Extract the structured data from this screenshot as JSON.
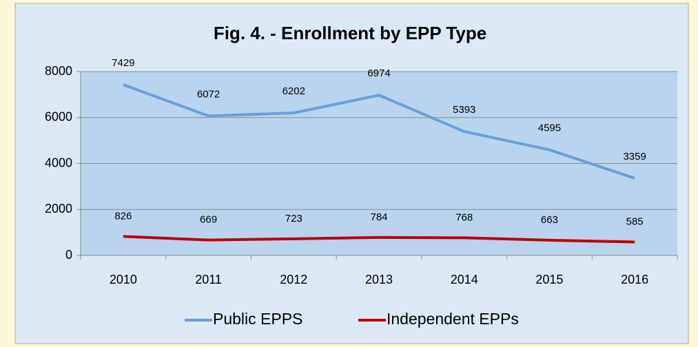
{
  "chart_data": {
    "type": "line",
    "title": "Fig. 4. - Enrollment by EPP Type",
    "categories": [
      "2010",
      "2011",
      "2012",
      "2013",
      "2014",
      "2015",
      "2016"
    ],
    "series": [
      {
        "name": "Public EPPS",
        "color": "#6a9fd6",
        "values": [
          7429,
          6072,
          6202,
          6974,
          5393,
          4595,
          3359
        ]
      },
      {
        "name": "Independent EPPs",
        "color": "#c00000",
        "values": [
          826,
          669,
          723,
          784,
          768,
          663,
          585
        ]
      }
    ],
    "ylim": [
      0,
      8000
    ],
    "yticks": [
      0,
      2000,
      4000,
      6000,
      8000
    ],
    "grid": true,
    "legend": "bottom"
  }
}
